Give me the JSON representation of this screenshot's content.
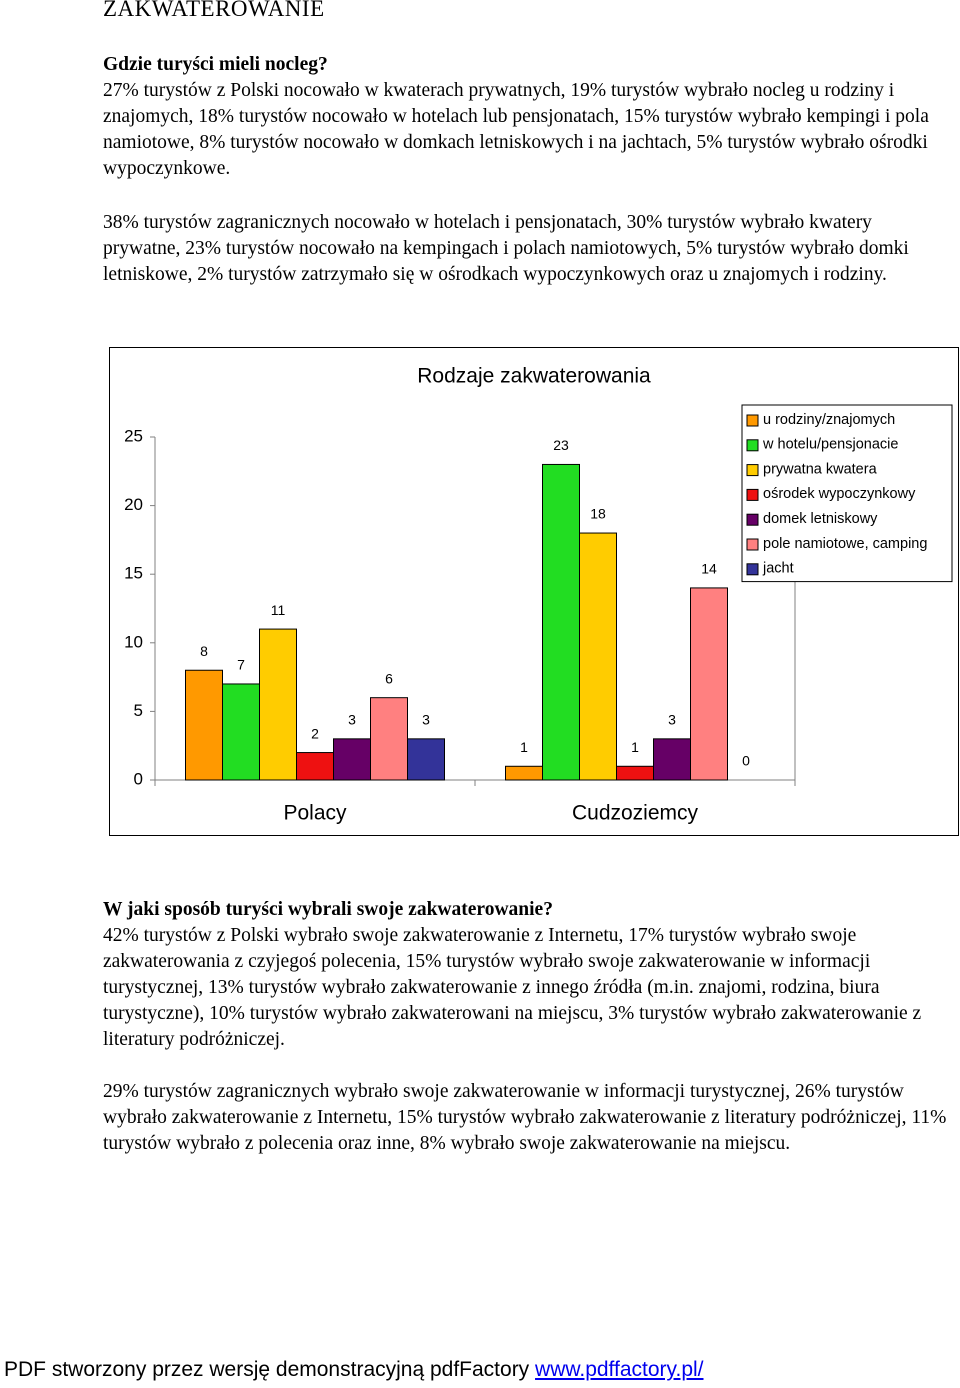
{
  "heading": "ZAKWATEROWANIE",
  "sections": [
    {
      "heading": "Gdzie turyści mieli nocleg?",
      "paragraphs": [
        "27% turystów z Polski nocowało w kwaterach prywatnych, 19% turystów wybrało nocleg u rodziny i znajomych, 18% turystów nocowało w hotelach lub pensjonatach, 15% turystów wybrało kempingi i pola namiotowe, 8% turystów nocowało w domkach letniskowych i na jachtach, 5% turystów wybrało ośrodki wypoczynkowe.",
        "38% turystów zagranicznych nocowało w hotelach i pensjonatach, 30% turystów wybrało kwatery prywatne, 23% turystów nocowało na kempingach i polach namiotowych, 5% turystów wybrało domki letniskowe, 2% turystów zatrzymało się w ośrodkach wypoczynkowych oraz u znajomych i rodziny."
      ]
    },
    {
      "heading": "W jaki sposób turyści wybrali swoje zakwaterowanie?",
      "paragraphs": [
        "42% turystów z Polski wybrało swoje zakwaterowanie z Internetu, 17% turystów wybrało swoje zakwaterowania z czyjegoś polecenia, 15% turystów wybrało swoje zakwaterowanie w informacji turystycznej, 13% turystów wybrało zakwaterowanie z innego źródła (m.in. znajomi, rodzina, biura turystyczne), 10% turystów wybrało zakwaterowani na miejscu, 3% turystów wybrało zakwaterowanie z literatury podróżniczej.",
        "29% turystów zagranicznych wybrało swoje zakwaterowanie w informacji turystycznej, 26% turystów wybrało zakwaterowanie z Internetu, 15% turystów wybrało zakwaterowanie z literatury podróżniczej, 11% turystów wybrało z polecenia oraz inne, 8% wybrało swoje zakwaterowanie na miejscu."
      ]
    }
  ],
  "chart_data": {
    "type": "bar",
    "title": "Rodzaje zakwaterowania",
    "categories": [
      "Polacy",
      "Cudzoziemcy"
    ],
    "series": [
      {
        "name": "u rodziny/znajomych",
        "color": "#ff9900",
        "values": [
          8,
          1
        ]
      },
      {
        "name": "w hotelu/pensjonacie",
        "color": "#22dd22",
        "values": [
          7,
          23
        ]
      },
      {
        "name": "prywatna kwatera",
        "color": "#ffcc00",
        "values": [
          11,
          18
        ]
      },
      {
        "name": "ośrodek wypoczynkowy",
        "color": "#ee1111",
        "values": [
          2,
          1
        ]
      },
      {
        "name": "domek letniskowy",
        "color": "#660066",
        "values": [
          3,
          3
        ]
      },
      {
        "name": "pole namiotowe, camping",
        "color": "#ff8080",
        "values": [
          6,
          14
        ]
      },
      {
        "name": "jacht",
        "color": "#333399",
        "values": [
          3,
          0
        ]
      }
    ],
    "ylim": [
      0,
      25
    ],
    "yticks": [
      0,
      5,
      10,
      15,
      20,
      25
    ],
    "data_labels": true,
    "legend": "top-right"
  },
  "footer": {
    "text": "PDF stworzony przez wersję demonstracyjną pdfFactory",
    "link": "www.pdffactory.pl/"
  }
}
